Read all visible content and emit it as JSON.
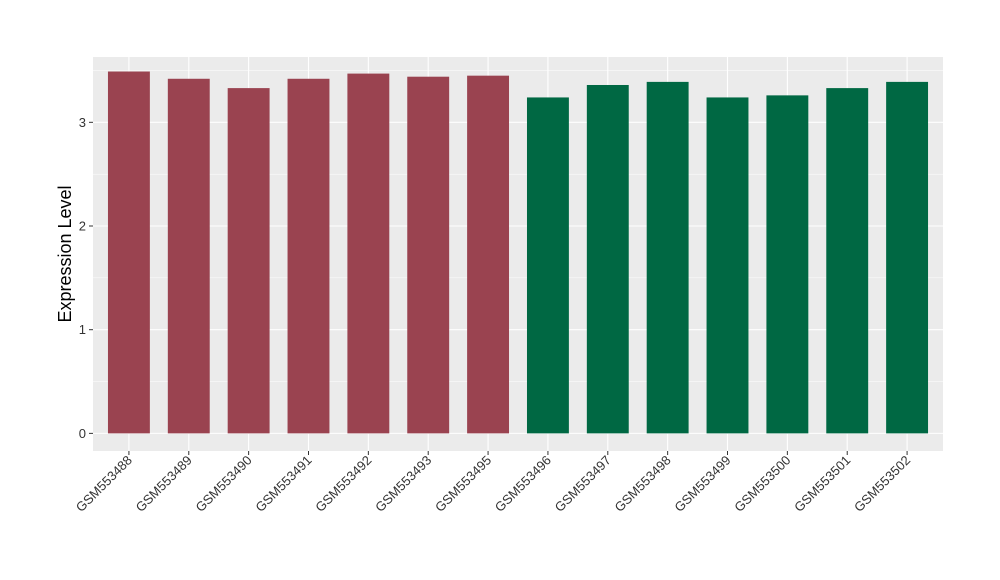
{
  "chart_data": {
    "type": "bar",
    "title": "",
    "xlabel": "",
    "ylabel": "Expression Level",
    "ylim": [
      -0.17,
      3.63
    ],
    "yticks": [
      0,
      1,
      2,
      3
    ],
    "grid": true,
    "legend": "none",
    "panel_color": "#EBEBEB",
    "grid_color": "#FFFFFF",
    "categories": [
      "GSM553488",
      "GSM553489",
      "GSM553490",
      "GSM553491",
      "GSM553492",
      "GSM553493",
      "GSM553495",
      "GSM553496",
      "GSM553497",
      "GSM553498",
      "GSM553499",
      "GSM553500",
      "GSM553501",
      "GSM553502"
    ],
    "values": [
      3.49,
      3.42,
      3.33,
      3.42,
      3.47,
      3.44,
      3.45,
      3.24,
      3.36,
      3.39,
      3.24,
      3.26,
      3.33,
      3.39
    ],
    "bar_colors": [
      "#9A4350",
      "#9A4350",
      "#9A4350",
      "#9A4350",
      "#9A4350",
      "#9A4350",
      "#9A4350",
      "#006843",
      "#006843",
      "#006843",
      "#006843",
      "#006843",
      "#006843",
      "#006843"
    ]
  }
}
